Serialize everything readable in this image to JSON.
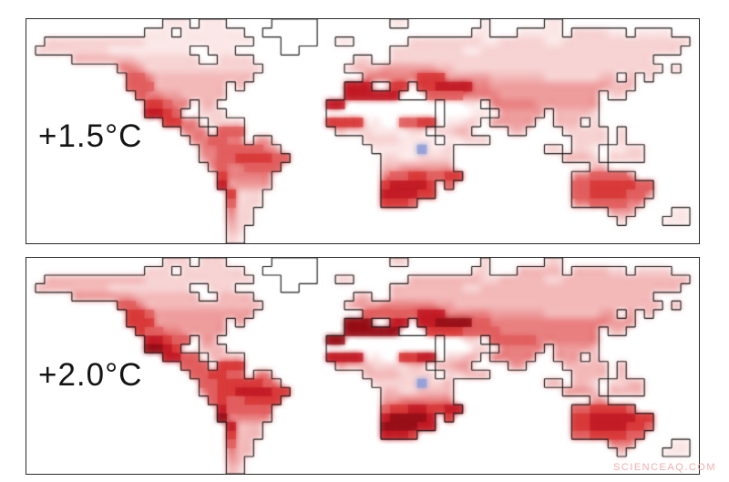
{
  "watermark": {
    "text": "SCIENCEAQ.COM",
    "color": "#f2acac"
  },
  "chart_data": {
    "type": "heatmap",
    "subtype": "choropleth-world-map-pair",
    "title": "",
    "description": "Two stacked equirectangular world maps comparing projected climate impact severity under +1.5°C and +2.0°C global warming. Red shading over land indicates impact intensity (darker red = stronger); white land = little/no change; small blue patch in East Africa (Lake Victoria region) = slight opposite-sign change. Oceans are white; coastlines drawn in black.",
    "projection": "equirectangular, lon -180..180 (74 columns), lat 82N..58S (25 rows)",
    "legend": "grid cell codes: '.'=ocean, '0'=land no signal (white), '1'-'9'=increasing red intensity, 'b'=blue (cooling) patch",
    "grid_cols": 74,
    "grid_rows": 25,
    "palette": {
      ".": "#ffffff",
      "0": "#ffffff",
      "1": "#fbe7e7",
      "2": "#f7d3d3",
      "3": "#f3b9b9",
      "4": "#ee9d9d",
      "5": "#e98080",
      "6": "#e25f5f",
      "7": "#d93a3a",
      "8": "#c31c26",
      "9": "#971018",
      "b": "#8f9fd8"
    },
    "coastline_color": "#1a1a1a",
    "panels": [
      {
        "label": "+1.5°C",
        "hotspots": "Mexico, western North America, Amazonia/NE Brazil, central Chile, Iberia & Mediterranean, Turkey, Sahel band, southern Africa, Madagascar, Australia",
        "grid": [
          "...............111.111.....00000........11........1......11...............",
          ".............111.1111111..000000.................11...11111.222211.1111...",
          "..22222222222111111111111...0000..11......2222222211222221122222222222222..",
          ".22222222111111111..111.....00..........22222222112222222222222222222222..",
          ".....33333332222222..2222...........22..22222222222222222222222222222....",
          "..........5542222222222222.........23334444443322222222222222222222222.2.......",
          "...........66533333333333............5555557774444433333322222233 3.2.......",
          "...........66633333333 3...........888..77.778888554444444444444333........",
          "............6554433333.............888888...6666555544444444444.22.........",
          ".............77655.33............880000000000 0011.555554444444............",
          ".............8876..222...........000000000000 00011.44444.33332............",
          "...............7755.2222.........777711006677.1122.44444..333.2...........",
          ".................555.666..........3222111122 2233....33....22222 2..........",
          "..................556655 44..........22221111 11222.........2222.2..........",
          "...................556666654..........11111b112..........22.221.1122......",
          "...................4566777766..........22112222............3332.2222......",
          "....................56556666...........33444444...............33..........",
          ".....................755555............566776677............5566665.......",
          ".....................844444............788887.6.............667777766.....",
          "......................7222.............888877...............667777665.....",
          "......................6222.............7776.................55666655......",
          "......................522.......................................444....11.",
          "......................422........................................2....111.",
          "......................32..................................................",
          "......................21.................................................."
        ]
      },
      {
        "label": "+2.0°C",
        "hotspots": "Same regions as +1.5°C but more intense: very dark red over southern Africa, Iberia, Turkey, Sahel, Mexico, Amazonia, central Chile; broader pink over Canada, Siberia, Europe, Asia",
        "grid": [
          "...............222.222.....00000........22........2......22...............",
          ".............222.2222222..000000.................22...33333.333322.2222...",
          "..33333333333222222222222...0000..22......3333333322333332233333333333333..",
          ".33333333222222222..222.....00..........33333333223333333333333333333333..",
          ".....44444443333333..3333...........33..33333333333333333333333333333....",
          "..........6653333333333333.........34445555554433333333333333333333333.3.......",
          "...........77644444444444............6666668885555544444433333344 4.3.......",
          "...........77744444444 4...........999..88.889999665555555555555444........",
          "............7665544444.............999999...7777666655555555555.33.........",
          ".............88766.44............990000000000 0022.666665555555............",
          ".............9987..333...........000000000000 00022.55555.44443............",
          "...............8866.3333.........888811007788.2233.55555..444.3...........",
          ".................666.777..........4333222233 3344....44....33333 3..........",
          "..................667766 55..........33332222 22333.........3333.3..........",
          "...................667777765..........22222b223..........33.332.2233......",
          "...................5677888877..........33223333............4443.3333......",
          "....................67667777...........44555555...............44..........",
          ".....................866666............677887788............6677776.......",
          ".....................955555............899998.7.............778888877.....",
          "......................8333.............999988...............778888776.....",
          "......................7333.............8887.................66777766......",
          "......................633.......................................555....11.",
          "......................533........................................3....111.",
          "......................43..................................................",
          "......................32.................................................."
        ]
      }
    ]
  }
}
